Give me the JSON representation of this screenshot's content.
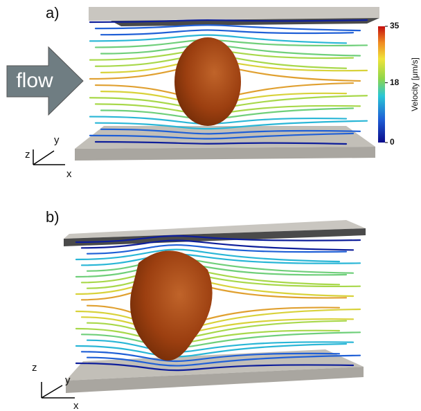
{
  "panels": [
    {
      "label": "a)",
      "axes": {
        "z": "z",
        "y": "y",
        "x": "x"
      }
    },
    {
      "label": "b)",
      "axes": {
        "z": "z",
        "y": "y",
        "x": "x"
      }
    }
  ],
  "flow_arrow": {
    "label": "flow"
  },
  "colorbar": {
    "label": "Velocity [μm/s]",
    "lim": [
      0,
      35
    ],
    "ticks": [
      35,
      18,
      0
    ]
  }
}
